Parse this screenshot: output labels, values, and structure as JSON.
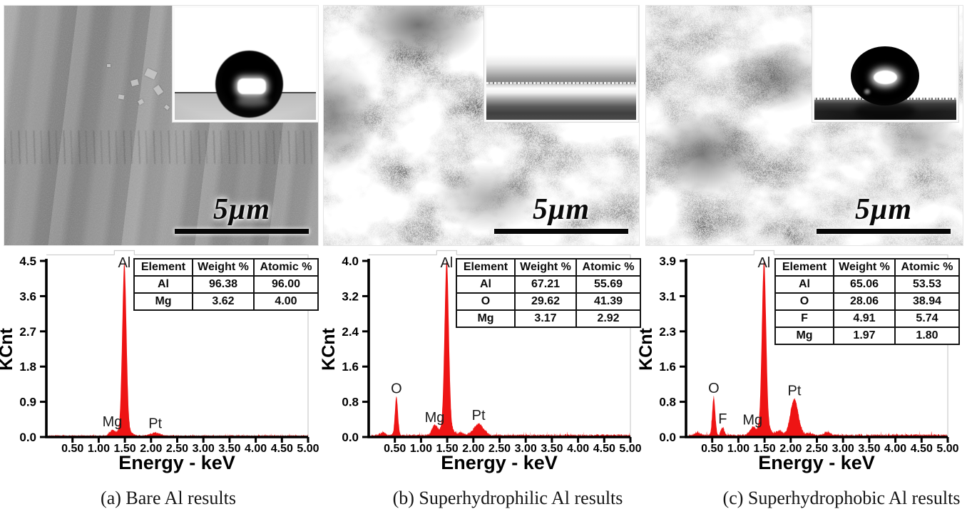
{
  "panels": [
    {
      "id": "a",
      "caption": "(a) Bare Al results",
      "scale_bar_label": "5μm",
      "sem_type": "smooth-brushed-surface",
      "inset": {
        "type": "water-droplet-on-surface"
      }
    },
    {
      "id": "b",
      "caption": "(b) Superhydrophilic Al results",
      "scale_bar_label": "5μm",
      "sem_type": "nanostructured-clusters",
      "inset": {
        "type": "water-film-spread-flat"
      }
    },
    {
      "id": "c",
      "caption": "(c) Superhydrophobic Al results",
      "scale_bar_label": "5μm",
      "sem_type": "nanostructured-clusters",
      "inset": {
        "type": "spherical-water-droplet"
      }
    }
  ],
  "chart_data": [
    {
      "type": "area",
      "title": "",
      "xlabel": "Energy - keV",
      "ylabel": "KCnt",
      "xlim": [
        0,
        5
      ],
      "ylim": [
        0,
        4.5
      ],
      "x_ticks": [
        "0.50",
        "1.00",
        "1.50",
        "2.00",
        "2.50",
        "3.00",
        "3.50",
        "4.00",
        "4.50",
        "5.00"
      ],
      "y_ticks": [
        "0.0",
        "0.9",
        "1.8",
        "2.7",
        "3.6",
        "4.5"
      ],
      "series_color": "#ee1414",
      "baseline_noise_kcnt": 0.035,
      "seed": 42,
      "grid": false,
      "peaks": [
        {
          "element": "Mg",
          "center_keV": 1.26,
          "height_kcnt": 0.13,
          "sigma_keV": 0.05,
          "labeled": true
        },
        {
          "element": "Al",
          "center_keV": 1.49,
          "height_kcnt": 4.25,
          "sigma_keV": 0.04,
          "labeled": true
        },
        {
          "element": "",
          "center_keV": 1.49,
          "height_kcnt": 0.16,
          "sigma_keV": 0.11,
          "labeled": false
        },
        {
          "element": "Pt",
          "center_keV": 2.08,
          "height_kcnt": 0.08,
          "sigma_keV": 0.085,
          "labeled": true
        }
      ],
      "table": {
        "headers": [
          "Element",
          "Weight %",
          "Atomic %"
        ],
        "rows": [
          [
            "Al",
            "96.38",
            "96.00"
          ],
          [
            "Mg",
            "3.62",
            "4.00"
          ]
        ]
      }
    },
    {
      "type": "area",
      "title": "",
      "xlabel": "Energy - keV",
      "ylabel": "KCnt",
      "xlim": [
        0,
        5
      ],
      "ylim": [
        0,
        4.0
      ],
      "x_ticks": [
        "0.50",
        "1.00",
        "1.50",
        "2.00",
        "2.50",
        "3.00",
        "3.50",
        "4.00",
        "4.50",
        "5.00"
      ],
      "y_ticks": [
        "0.0",
        "0.8",
        "1.6",
        "2.4",
        "3.2",
        "4.0"
      ],
      "series_color": "#ee1414",
      "baseline_noise_kcnt": 0.045,
      "seed": 7,
      "grid": false,
      "peaks": [
        {
          "element": "",
          "center_keV": 0.27,
          "height_kcnt": 0.05,
          "sigma_keV": 0.05,
          "labeled": false
        },
        {
          "element": "O",
          "center_keV": 0.53,
          "height_kcnt": 0.87,
          "sigma_keV": 0.028,
          "labeled": true
        },
        {
          "element": "Mg",
          "center_keV": 1.26,
          "height_kcnt": 0.21,
          "sigma_keV": 0.05,
          "labeled": true
        },
        {
          "element": "Al",
          "center_keV": 1.49,
          "height_kcnt": 3.8,
          "sigma_keV": 0.04,
          "labeled": true
        },
        {
          "element": "",
          "center_keV": 1.49,
          "height_kcnt": 0.2,
          "sigma_keV": 0.11,
          "labeled": false
        },
        {
          "element": "",
          "center_keV": 1.78,
          "height_kcnt": 0.05,
          "sigma_keV": 0.05,
          "labeled": false
        },
        {
          "element": "Pt",
          "center_keV": 2.1,
          "height_kcnt": 0.26,
          "sigma_keV": 0.09,
          "labeled": true
        }
      ],
      "table": {
        "headers": [
          "Element",
          "Weight %",
          "Atomic %"
        ],
        "rows": [
          [
            "Al",
            "67.21",
            "55.69"
          ],
          [
            "O",
            "29.62",
            "41.39"
          ],
          [
            "Mg",
            "3.17",
            "2.92"
          ]
        ]
      }
    },
    {
      "type": "area",
      "title": "",
      "xlabel": "Energy - keV",
      "ylabel": "KCnt",
      "xlim": [
        0,
        5
      ],
      "ylim": [
        0,
        3.9
      ],
      "x_ticks": [
        "0.50",
        "1.00",
        "1.50",
        "2.00",
        "2.50",
        "3.00",
        "3.50",
        "4.00",
        "4.50",
        "5.00"
      ],
      "y_ticks": [
        "0.0",
        "0.8",
        "1.6",
        "2.3",
        "3.1",
        "3.9"
      ],
      "series_color": "#ee1414",
      "baseline_noise_kcnt": 0.045,
      "seed": 19,
      "grid": false,
      "peaks": [
        {
          "element": "",
          "center_keV": 0.22,
          "height_kcnt": 0.06,
          "sigma_keV": 0.05,
          "labeled": false
        },
        {
          "element": "O",
          "center_keV": 0.53,
          "height_kcnt": 0.85,
          "sigma_keV": 0.028,
          "labeled": true
        },
        {
          "element": "F",
          "center_keV": 0.7,
          "height_kcnt": 0.17,
          "sigma_keV": 0.032,
          "labeled": true
        },
        {
          "element": "Mg",
          "center_keV": 1.27,
          "height_kcnt": 0.15,
          "sigma_keV": 0.05,
          "labeled": true
        },
        {
          "element": "Al",
          "center_keV": 1.49,
          "height_kcnt": 3.68,
          "sigma_keV": 0.04,
          "labeled": true
        },
        {
          "element": "",
          "center_keV": 1.49,
          "height_kcnt": 0.2,
          "sigma_keV": 0.11,
          "labeled": false
        },
        {
          "element": "",
          "center_keV": 1.79,
          "height_kcnt": 0.1,
          "sigma_keV": 0.05,
          "labeled": false
        },
        {
          "element": "Pt",
          "center_keV": 2.07,
          "height_kcnt": 0.8,
          "sigma_keV": 0.075,
          "labeled": true
        },
        {
          "element": "",
          "center_keV": 2.36,
          "height_kcnt": 0.05,
          "sigma_keV": 0.06,
          "labeled": false
        },
        {
          "element": "",
          "center_keV": 2.7,
          "height_kcnt": 0.07,
          "sigma_keV": 0.06,
          "labeled": false
        }
      ],
      "table": {
        "headers": [
          "Element",
          "Weight %",
          "Atomic %"
        ],
        "rows": [
          [
            "Al",
            "65.06",
            "53.53"
          ],
          [
            "O",
            "28.06",
            "38.94"
          ],
          [
            "F",
            "4.91",
            "5.74"
          ],
          [
            "Mg",
            "1.97",
            "1.80"
          ]
        ]
      }
    }
  ]
}
